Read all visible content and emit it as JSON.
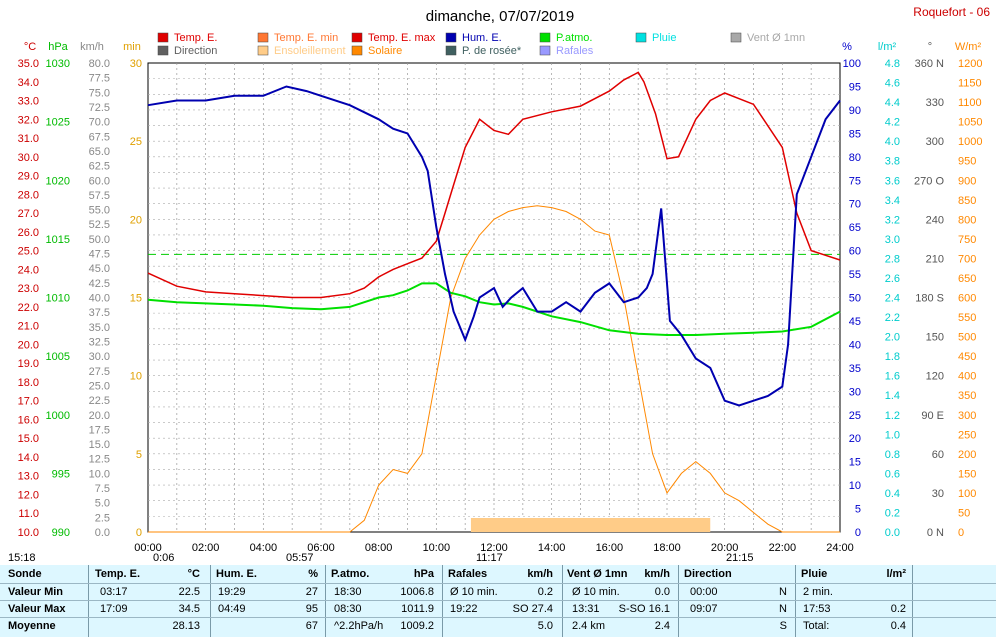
{
  "header": {
    "title": "dimanche, 07/07/2019",
    "station": "Roquefort - 06"
  },
  "legend": [
    {
      "label": "Temp. E.",
      "color": "#e00000"
    },
    {
      "label": "Temp. E. min",
      "color": "#ff7733"
    },
    {
      "label": "Temp. E. max",
      "color": "#e00000"
    },
    {
      "label": "Hum. E.",
      "color": "#0000b0"
    },
    {
      "label": "P.atmo.",
      "color": "#00e000"
    },
    {
      "label": "Pluie",
      "color": "#00e0e0"
    },
    {
      "label": "Vent Ø 1mn",
      "color": "#a8a8a8"
    },
    {
      "label": "Direction",
      "color": "#606060"
    },
    {
      "label": "Ensoleillement",
      "color": "#ffcc88"
    },
    {
      "label": "Solaire",
      "color": "#ff8800"
    },
    {
      "label": "P. de rosée*",
      "color": "#406060"
    },
    {
      "label": "Rafales",
      "color": "#9999ff"
    }
  ],
  "axis_units": {
    "temp": "°C",
    "press": "hPa",
    "wind": "km/h",
    "min": "min",
    "hum": "%",
    "rain": "l/m²",
    "dir": "°",
    "solar": "W/m²"
  },
  "axes": {
    "temp": [
      "35.0",
      "34.0",
      "33.0",
      "32.0",
      "31.0",
      "30.0",
      "29.0",
      "28.0",
      "27.0",
      "26.0",
      "25.0",
      "24.0",
      "23.0",
      "22.0",
      "21.0",
      "20.0",
      "19.0",
      "18.0",
      "17.0",
      "16.0",
      "15.0",
      "14.0",
      "13.0",
      "12.0",
      "11.0",
      "10.0"
    ],
    "press": [
      "1030",
      "1025",
      "1020",
      "1015",
      "1010",
      "1005",
      "1000",
      "995",
      "990"
    ],
    "wind": [
      "80.0",
      "77.5",
      "75.0",
      "72.5",
      "70.0",
      "67.5",
      "65.0",
      "62.5",
      "60.0",
      "57.5",
      "55.0",
      "52.5",
      "50.0",
      "47.5",
      "45.0",
      "42.5",
      "40.0",
      "37.5",
      "35.0",
      "32.5",
      "30.0",
      "27.5",
      "25.0",
      "22.5",
      "20.0",
      "17.5",
      "15.0",
      "12.5",
      "10.0",
      "7.5",
      "5.0",
      "2.5",
      "0.0"
    ],
    "minutes": [
      "30",
      "25",
      "20",
      "15",
      "10",
      "5",
      "0"
    ],
    "hum": [
      "100",
      "95",
      "90",
      "85",
      "80",
      "75",
      "70",
      "65",
      "60",
      "55",
      "50",
      "45",
      "40",
      "35",
      "30",
      "25",
      "20",
      "15",
      "10",
      "5",
      "0"
    ],
    "rain": [
      "4.8",
      "4.6",
      "4.4",
      "4.2",
      "4.0",
      "3.8",
      "3.6",
      "3.4",
      "3.2",
      "3.0",
      "2.8",
      "2.6",
      "2.4",
      "2.2",
      "2.0",
      "1.8",
      "1.6",
      "1.4",
      "1.2",
      "1.0",
      "0.8",
      "0.6",
      "0.4",
      "0.2",
      "0.0"
    ],
    "dir": [
      "360 N",
      "330",
      "300",
      "270 O",
      "240",
      "210",
      "180 S",
      "150",
      "120",
      "90 E",
      "60",
      "30",
      "0 N"
    ],
    "solar": [
      "1200",
      "1150",
      "1100",
      "1050",
      "1000",
      "950",
      "900",
      "850",
      "800",
      "750",
      "700",
      "650",
      "600",
      "550",
      "500",
      "450",
      "400",
      "350",
      "300",
      "250",
      "200",
      "150",
      "100",
      "50",
      "0"
    ],
    "time": [
      "00:00",
      "02:00",
      "04:00",
      "06:00",
      "08:00",
      "10:00",
      "12:00",
      "14:00",
      "16:00",
      "18:00",
      "20:00",
      "22:00",
      "24:00"
    ]
  },
  "sun_marks": {
    "sunrise": "05:57",
    "sunset": "21:15",
    "moon_a": "15:18",
    "moon_b": "0:06",
    "noon": "11:17"
  },
  "chart_data": {
    "type": "line",
    "x_unit": "hours",
    "xlim": [
      0,
      24
    ],
    "temp_ylim": [
      10,
      35
    ],
    "hum_ylim": [
      0,
      100
    ],
    "press_ylim": [
      990,
      1030
    ],
    "solar_ylim": [
      0,
      1200
    ],
    "wind_ylim": [
      0,
      80
    ],
    "series": [
      {
        "name": "Temp. E.",
        "x": [
          0,
          1,
          2,
          3,
          4,
          5,
          6,
          7,
          7.5,
          8,
          8.5,
          9,
          9.5,
          10,
          10.3,
          10.6,
          11,
          11.5,
          12,
          12.5,
          13,
          14,
          15,
          16,
          16.5,
          17,
          17.2,
          17.6,
          18,
          18.4,
          19,
          19.5,
          20,
          21,
          22,
          22.5,
          23,
          24
        ],
        "values": [
          23.8,
          23.1,
          22.8,
          22.7,
          22.6,
          22.5,
          22.5,
          22.7,
          23,
          23.6,
          24,
          24.3,
          24.6,
          25.5,
          27,
          28.5,
          30.5,
          32,
          31.4,
          31.2,
          32,
          32.4,
          32.7,
          33.5,
          34.1,
          34.5,
          34,
          32.3,
          29.9,
          30,
          32,
          33,
          33.4,
          32.8,
          30.5,
          27,
          25,
          24.5
        ]
      },
      {
        "name": "Hum. E.",
        "x": [
          0,
          1,
          2,
          3,
          4,
          4.8,
          5.5,
          6,
          7,
          8,
          8.5,
          9,
          9.5,
          9.7,
          10,
          10.3,
          10.6,
          11,
          11.3,
          11.5,
          12,
          12.3,
          12.6,
          13,
          13.5,
          14,
          14.5,
          15,
          15.5,
          16,
          16.5,
          17,
          17.3,
          17.5,
          17.8,
          18.1,
          18.5,
          19,
          19.5,
          20,
          20.5,
          21,
          21.5,
          22,
          22.2,
          22.5,
          23,
          23.5,
          24
        ],
        "values": [
          91,
          92,
          92,
          93,
          93,
          95,
          94,
          93,
          91,
          88,
          86,
          85,
          80,
          77,
          65,
          55,
          47,
          41,
          46,
          50,
          52,
          48,
          50,
          52,
          47,
          47,
          49,
          47,
          51,
          53,
          49,
          50,
          52,
          55,
          69,
          45,
          42,
          37,
          35,
          28,
          27,
          28,
          29,
          31,
          40,
          72,
          80,
          88,
          92
        ]
      },
      {
        "name": "P.atmo.",
        "x": [
          0,
          1,
          2,
          3,
          4,
          5,
          6,
          7,
          7.5,
          8,
          8.5,
          9,
          9.5,
          10,
          10.5,
          11,
          11.5,
          12,
          12.5,
          13,
          14,
          15,
          16,
          17,
          18,
          19,
          20,
          21,
          22,
          23,
          24
        ],
        "values": [
          1009.8,
          1009.6,
          1009.5,
          1009.4,
          1009.3,
          1009.1,
          1009.0,
          1009.2,
          1009.6,
          1010.0,
          1010.2,
          1010.6,
          1011.2,
          1011.2,
          1010.4,
          1010.1,
          1009.6,
          1009.4,
          1009.5,
          1009.2,
          1008.4,
          1007.9,
          1007.2,
          1006.9,
          1006.8,
          1006.8,
          1006.9,
          1007.0,
          1007.1,
          1007.5,
          1008.8
        ]
      },
      {
        "name": "Solaire",
        "x": [
          0,
          7,
          7.5,
          8,
          8.5,
          9,
          9.5,
          10,
          10.5,
          11,
          11.5,
          12,
          12.5,
          13,
          13.5,
          14,
          14.5,
          15,
          15.5,
          16,
          16.5,
          17,
          17.5,
          18,
          18.5,
          19,
          19.5,
          20,
          20.5,
          21,
          21.5,
          22,
          24
        ],
        "values": [
          0,
          0,
          30,
          120,
          160,
          150,
          200,
          400,
          600,
          700,
          760,
          800,
          820,
          830,
          835,
          830,
          820,
          800,
          770,
          760,
          600,
          400,
          200,
          100,
          150,
          180,
          150,
          100,
          80,
          50,
          20,
          0,
          0
        ]
      }
    ]
  },
  "stats": {
    "headers": {
      "sonde": "Sonde",
      "temp": "Temp. E.",
      "temp_u": "°C",
      "hum": "Hum. E.",
      "hum_u": "%",
      "press": "P.atmo.",
      "press_u": "hPa",
      "raf": "Rafales",
      "raf_u": "km/h",
      "vent": "Vent Ø 1mn",
      "vent_u": "km/h",
      "dir": "Direction",
      "pluie": "Pluie",
      "pluie_u": "l/m²"
    },
    "rows": [
      {
        "label": "Valeur Min",
        "temp_t": "03:17",
        "temp_v": "22.5",
        "hum_t": "19:29",
        "hum_v": "27",
        "press_t": "18:30",
        "press_v": "1006.8",
        "raf_l": "Ø 10 min.",
        "raf_v": "0.2",
        "vent_l": "Ø 10 min.",
        "vent_v": "0.0",
        "dir_t": "00:00",
        "dir_v": "N",
        "pluie_l": "2 min.",
        "pluie_v": ""
      },
      {
        "label": "Valeur Max",
        "temp_t": "17:09",
        "temp_v": "34.5",
        "hum_t": "04:49",
        "hum_v": "95",
        "press_t": "08:30",
        "press_v": "1011.9",
        "raf_l": "19:22",
        "raf_v": "SO 27.4",
        "vent_l": "13:31",
        "vent_v": "S-SO 16.1",
        "dir_t": "09:07",
        "dir_v": "N",
        "pluie_l": "17:53",
        "pluie_v": "0.2"
      },
      {
        "label": "Moyenne",
        "temp_t": "",
        "temp_v": "28.13",
        "hum_t": "",
        "hum_v": "67",
        "press_t": "^2.2hPa/h",
        "press_v": "1009.2",
        "raf_l": "",
        "raf_v": "5.0",
        "vent_l": "2.4 km",
        "vent_v": "2.4",
        "dir_t": "",
        "dir_v": "S",
        "pluie_l": "Total:",
        "pluie_v": "0.4"
      }
    ]
  }
}
